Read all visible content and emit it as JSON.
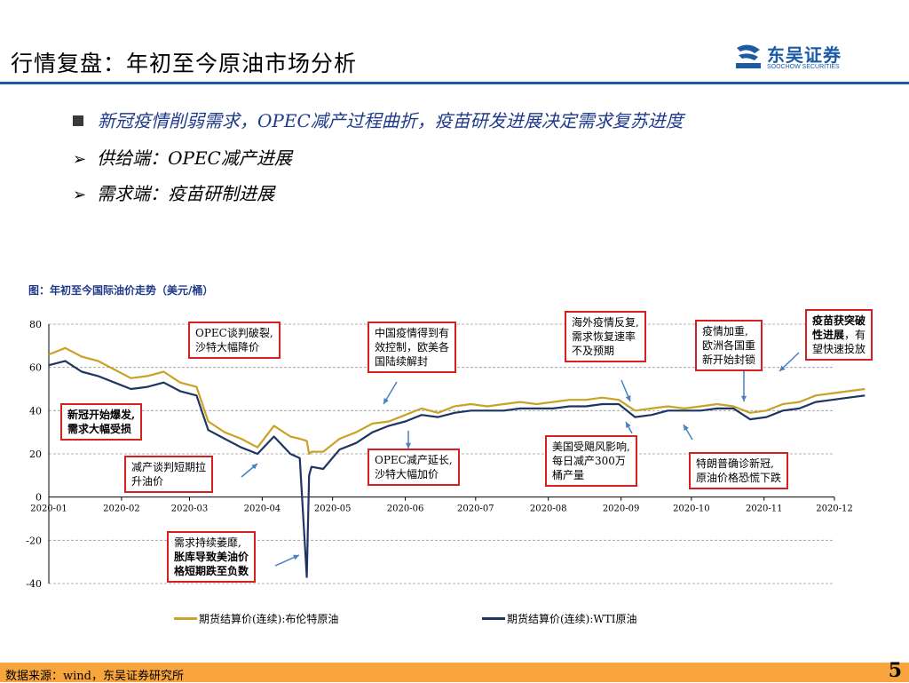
{
  "header": {
    "title": "行情复盘：年初至今原油市场分析",
    "logo_cn": "东吴证券",
    "logo_en": "SOOCHOW SECURITIES",
    "logo_color": "#1a5aa6"
  },
  "bullets": {
    "main": "新冠疫情削弱需求，OPEC减产过程曲折，疫苗研发进展决定需求复苏进度",
    "supply": "供给端：OPEC减产进展",
    "demand": "需求端：疫苗研制进展"
  },
  "chart_caption": "图：年初至今国际油价走势（美元/桶）",
  "annotations": [
    {
      "lines": [
        "新冠开始爆发,",
        "需求大幅受损"
      ],
      "bold": true
    },
    {
      "lines": [
        "OPEC谈判破裂,",
        "沙特大幅降价"
      ],
      "bold": false
    },
    {
      "lines": [
        "减产谈判短期拉",
        "升油价"
      ],
      "bold": false
    },
    {
      "lines": [
        "需求持续萎靡,",
        "胀库导致美油价",
        "格短期跌至负数"
      ],
      "bold": false
    },
    {
      "lines": [
        "中国疫情得到有",
        "效控制，欧美各",
        "国陆续解封"
      ],
      "bold": false
    },
    {
      "lines": [
        "OPEC减产延长,",
        "沙特大幅加价"
      ],
      "bold": false
    },
    {
      "lines": [
        "海外疫情反复,",
        "需求恢复速率",
        "不及预期"
      ],
      "bold": false
    },
    {
      "lines": [
        "美国受飓风影响,",
        "每日减产300万",
        "桶产量"
      ],
      "bold": false
    },
    {
      "lines": [
        "疫情加重,",
        "欧洲各国重",
        "新开始封锁"
      ],
      "bold": false
    },
    {
      "lines": [
        "特朗普确诊新冠,",
        "原油价格恐慌下跌"
      ],
      "bold": false
    },
    {
      "lines": [
        "疫苗获突破",
        "性进展，有",
        "望快速投放"
      ],
      "bold": false
    }
  ],
  "footer": {
    "source": "数据来源：wind，东吴证券研究所",
    "page": "5"
  },
  "chart_data": {
    "type": "line",
    "title": "",
    "xlabel": "",
    "ylabel": "",
    "ylim": [
      -40,
      80
    ],
    "yticks": [
      -40,
      -20,
      0,
      20,
      40,
      60,
      80
    ],
    "xtick_labels": [
      "2020-01",
      "2020-02",
      "2020-03",
      "2020-04",
      "2020-05",
      "2020-06",
      "2020-07",
      "2020-08",
      "2020-09",
      "2020-10",
      "2020-11",
      "2020-12"
    ],
    "grid": "horizontal-dashed",
    "legend_position": "bottom",
    "x": [
      "2020-01-01",
      "2020-01-08",
      "2020-01-15",
      "2020-01-22",
      "2020-01-29",
      "2020-02-05",
      "2020-02-12",
      "2020-02-19",
      "2020-02-26",
      "2020-03-04",
      "2020-03-09",
      "2020-03-16",
      "2020-03-23",
      "2020-03-30",
      "2020-04-06",
      "2020-04-13",
      "2020-04-17",
      "2020-04-20",
      "2020-04-21",
      "2020-04-22",
      "2020-04-27",
      "2020-05-04",
      "2020-05-11",
      "2020-05-18",
      "2020-05-25",
      "2020-06-01",
      "2020-06-08",
      "2020-06-15",
      "2020-06-22",
      "2020-06-29",
      "2020-07-06",
      "2020-07-13",
      "2020-07-20",
      "2020-07-27",
      "2020-08-03",
      "2020-08-10",
      "2020-08-17",
      "2020-08-24",
      "2020-08-31",
      "2020-09-07",
      "2020-09-14",
      "2020-09-21",
      "2020-09-28",
      "2020-10-05",
      "2020-10-12",
      "2020-10-19",
      "2020-10-26",
      "2020-11-02",
      "2020-11-09",
      "2020-11-16",
      "2020-11-23",
      "2020-11-30",
      "2020-12-07",
      "2020-12-14"
    ],
    "series": [
      {
        "name": "期货结算价(连续):布伦特原油",
        "color": "#c9a227",
        "values": [
          66,
          69,
          65,
          63,
          59,
          55,
          56,
          58,
          53,
          51,
          35,
          30,
          27,
          23,
          33,
          28,
          27,
          26,
          20,
          21,
          21,
          27,
          30,
          34,
          35,
          38,
          41,
          39,
          42,
          43,
          42,
          43,
          44,
          43,
          44,
          45,
          45,
          46,
          45,
          40,
          41,
          42,
          41,
          42,
          43,
          42,
          39,
          40,
          43,
          44,
          47,
          48,
          49,
          50
        ]
      },
      {
        "name": "期货结算价(连续):WTI原油",
        "color": "#1f3561",
        "values": [
          61,
          63,
          58,
          56,
          53,
          50,
          51,
          53,
          49,
          47,
          31,
          27,
          23,
          20,
          28,
          20,
          18,
          -37,
          10,
          14,
          13,
          22,
          25,
          30,
          33,
          35,
          38,
          37,
          39,
          40,
          40,
          40,
          41,
          41,
          41,
          42,
          42,
          43,
          43,
          37,
          38,
          40,
          40,
          40,
          41,
          41,
          36,
          37,
          40,
          41,
          44,
          45,
          46,
          47
        ]
      }
    ]
  }
}
